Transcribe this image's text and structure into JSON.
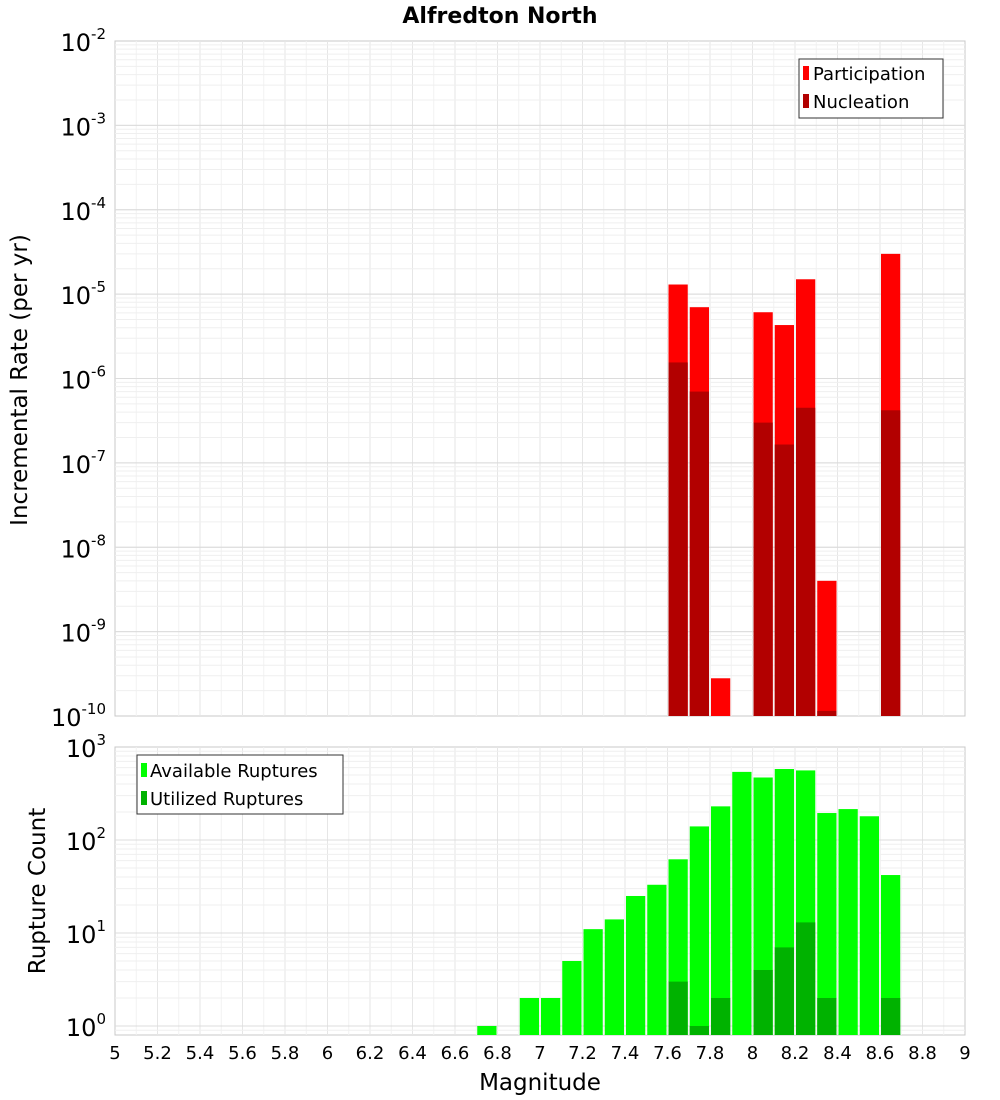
{
  "chart": {
    "title": "Alfredton North",
    "xlabel": "Magnitude"
  },
  "chart_data": [
    {
      "type": "bar",
      "panel": "top",
      "title": "Alfredton North",
      "ylabel": "Incremental Rate (per yr)",
      "y_scale": "log",
      "ylim": [
        1e-10,
        0.01
      ],
      "y_ticks": [
        {
          "base": "10",
          "exp": "-10"
        },
        {
          "base": "10",
          "exp": "-9"
        },
        {
          "base": "10",
          "exp": "-8"
        },
        {
          "base": "10",
          "exp": "-7"
        },
        {
          "base": "10",
          "exp": "-6"
        },
        {
          "base": "10",
          "exp": "-5"
        },
        {
          "base": "10",
          "exp": "-4"
        },
        {
          "base": "10",
          "exp": "-3"
        },
        {
          "base": "10",
          "exp": "-2"
        }
      ],
      "xlim": [
        5,
        9
      ],
      "x_ticks": [
        "5",
        "5.2",
        "5.4",
        "5.6",
        "5.8",
        "6",
        "6.2",
        "6.4",
        "6.6",
        "6.8",
        "7",
        "7.2",
        "7.4",
        "7.6",
        "7.8",
        "8",
        "8.2",
        "8.4",
        "8.6",
        "8.8",
        "9"
      ],
      "x": [
        7.65,
        7.75,
        7.85,
        8.05,
        8.15,
        8.25,
        8.35,
        8.65
      ],
      "series": [
        {
          "name": "Participation",
          "color": "#ff0000",
          "values": [
            1.3e-05,
            7e-06,
            2.8e-10,
            6.1e-06,
            4.3e-06,
            1.5e-05,
            4e-09,
            3e-05
          ]
        },
        {
          "name": "Nucleation",
          "color": "#b20000",
          "values": [
            1.55e-06,
            7e-07,
            null,
            3e-07,
            1.65e-07,
            4.5e-07,
            1.15e-10,
            4.2e-07
          ]
        }
      ],
      "legend_position": "top-right",
      "grid": true
    },
    {
      "type": "bar",
      "panel": "bottom",
      "ylabel": "Rupture Count",
      "y_scale": "log",
      "ylim": [
        0.8,
        1000
      ],
      "y_ticks": [
        {
          "base": "10",
          "exp": "0"
        },
        {
          "base": "10",
          "exp": "1"
        },
        {
          "base": "10",
          "exp": "2"
        },
        {
          "base": "10",
          "exp": "3"
        }
      ],
      "xlabel": "Magnitude",
      "xlim": [
        5,
        9
      ],
      "x_ticks": [
        "5",
        "5.2",
        "5.4",
        "5.6",
        "5.8",
        "6",
        "6.2",
        "6.4",
        "6.6",
        "6.8",
        "7",
        "7.2",
        "7.4",
        "7.6",
        "7.8",
        "8",
        "8.2",
        "8.4",
        "8.6",
        "8.8",
        "9"
      ],
      "x": [
        6.75,
        6.95,
        7.05,
        7.15,
        7.25,
        7.35,
        7.45,
        7.55,
        7.65,
        7.75,
        7.85,
        7.95,
        8.05,
        8.15,
        8.25,
        8.35,
        8.45,
        8.55,
        8.65
      ],
      "series": [
        {
          "name": "Available Ruptures",
          "color": "#00ff00",
          "values": [
            1,
            2,
            2,
            5,
            11,
            14,
            25,
            33,
            62,
            140,
            230,
            540,
            470,
            580,
            560,
            195,
            215,
            180,
            42
          ]
        },
        {
          "name": "Utilized Ruptures",
          "color": "#00b200",
          "values": [
            null,
            null,
            null,
            null,
            null,
            null,
            null,
            null,
            3,
            1,
            2,
            null,
            4,
            7,
            13,
            2,
            null,
            null,
            2
          ]
        }
      ],
      "legend_position": "top-left",
      "grid": true
    }
  ]
}
